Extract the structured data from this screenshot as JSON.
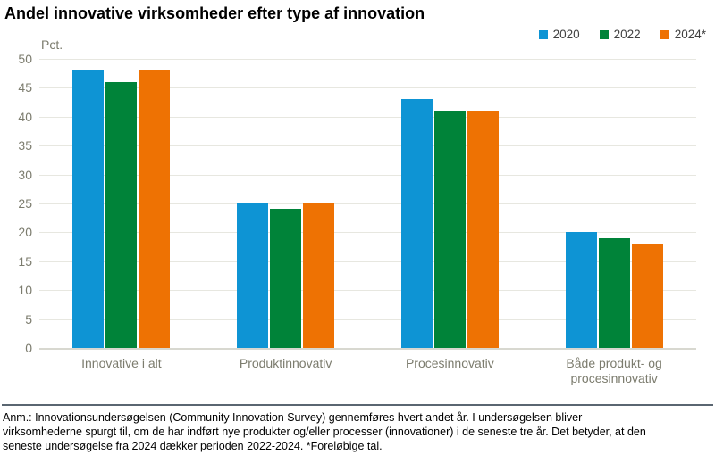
{
  "title": "Andel innovative virksomheder efter type af innovation",
  "axis": {
    "unit_label": "Pct.",
    "y_ticks": [
      50,
      45,
      40,
      35,
      30,
      25,
      20,
      15,
      10,
      5,
      0
    ]
  },
  "legend": {
    "items": [
      {
        "label": "2020",
        "color": "#0E94D4"
      },
      {
        "label": "2022",
        "color": "#008339"
      },
      {
        "label": "2024*",
        "color": "#EE7203"
      }
    ]
  },
  "chart_data": {
    "type": "bar",
    "title": "Andel innovative virksomheder efter type af innovation",
    "xlabel": "",
    "ylabel": "Pct.",
    "ylim": [
      0,
      50
    ],
    "ytick_step": 5,
    "grid": true,
    "legend_position": "top-right",
    "categories": [
      "Innovative i alt",
      "Produktinnovativ",
      "Procesinnovativ",
      "Både produkt- og procesinnovativ"
    ],
    "series": [
      {
        "name": "2020",
        "color": "#0E94D4",
        "values": [
          48,
          25,
          43,
          20
        ]
      },
      {
        "name": "2022",
        "color": "#008339",
        "values": [
          46,
          24,
          41,
          19
        ]
      },
      {
        "name": "2024*",
        "color": "#EE7203",
        "values": [
          48,
          25,
          41,
          18
        ]
      }
    ]
  },
  "note": {
    "lines": [
      "Anm.: Innovationsundersøgelsen (Community Innovation Survey) gennemføres hvert andet år. I undersøgelsen bliver",
      "virksomhederne spurgt til, om de har indført nye produkter og/eller processer (innovationer) i de seneste tre år. Det betyder, at den",
      "seneste undersøgelse fra 2024 dækker perioden 2022-2024. *Foreløbige tal."
    ]
  },
  "colors": {
    "gridline": "#E7E7E0",
    "baseline": "#D8D8D0",
    "axis_text": "#7C7C6E",
    "legend_text": "#414141",
    "separator": "#5A6671"
  }
}
